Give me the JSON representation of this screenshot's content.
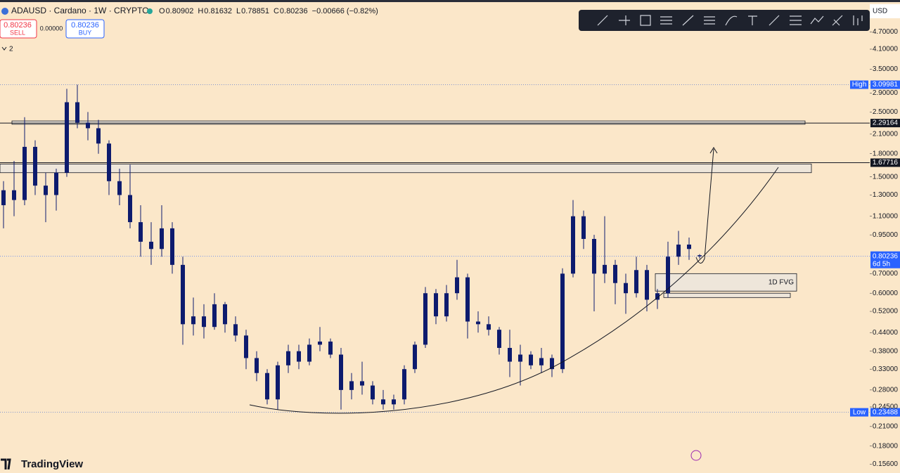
{
  "header": {
    "symbol": "ADAUSD · Cardano · 1W · CRYPTO",
    "ohlc_labels": [
      "O",
      "H",
      "L",
      "C"
    ],
    "change": "−0.00666 (−0.82%)",
    "sell_price": "0.80236",
    "sell": "SELL",
    "spread": "0.00000",
    "buy_price": "0.80236",
    "buy": "BUY",
    "indicators": "2",
    "currency": "USD"
  },
  "brand": "TradingView",
  "chart_data": {
    "type": "candlestick",
    "log_scale": true,
    "ylim": [
      0.1497,
      6.04
    ],
    "up_color": "#0d1b6e",
    "down_color": "#0d1b6e",
    "yticks": [
      {
        "value": 4.7,
        "label": "4.70000"
      },
      {
        "value": 4.1,
        "label": "4.10000"
      },
      {
        "value": 3.5,
        "label": "3.50000"
      },
      {
        "value": 2.9,
        "label": "2.90000"
      },
      {
        "value": 2.5,
        "label": "2.50000"
      },
      {
        "value": 2.1,
        "label": "2.10000"
      },
      {
        "value": 1.8,
        "label": "1.80000"
      },
      {
        "value": 1.5,
        "label": "1.50000"
      },
      {
        "value": 1.3,
        "label": "1.30000"
      },
      {
        "value": 1.1,
        "label": "1.10000"
      },
      {
        "value": 0.95,
        "label": "0.95000"
      },
      {
        "value": 0.7,
        "label": "0.70000"
      },
      {
        "value": 0.6,
        "label": "0.60000"
      },
      {
        "value": 0.52,
        "label": "0.52000"
      },
      {
        "value": 0.44,
        "label": "0.44000"
      },
      {
        "value": 0.38,
        "label": "0.38000"
      },
      {
        "value": 0.33,
        "label": "0.33000"
      },
      {
        "value": 0.28,
        "label": "0.28000"
      },
      {
        "value": 0.245,
        "label": "0.24500"
      },
      {
        "value": 0.21,
        "label": "0.21000"
      },
      {
        "value": 0.18,
        "label": "0.18000"
      },
      {
        "value": 0.156,
        "label": "0.15600"
      }
    ],
    "candles": [
      [
        1.2,
        1.45,
        1.0,
        1.35
      ],
      [
        1.35,
        1.7,
        1.1,
        1.25
      ],
      [
        1.25,
        2.4,
        1.2,
        1.9
      ],
      [
        1.9,
        2.0,
        1.3,
        1.4
      ],
      [
        1.4,
        1.55,
        1.05,
        1.3
      ],
      [
        1.3,
        1.6,
        1.15,
        1.55
      ],
      [
        1.55,
        3.0,
        1.5,
        2.7
      ],
      [
        2.7,
        3.1,
        2.2,
        2.3
      ],
      [
        2.3,
        2.5,
        2.0,
        2.2
      ],
      [
        2.2,
        2.35,
        1.8,
        1.95
      ],
      [
        1.95,
        2.0,
        1.3,
        1.45
      ],
      [
        1.45,
        1.6,
        1.2,
        1.3
      ],
      [
        1.3,
        1.65,
        1.0,
        1.05
      ],
      [
        1.05,
        1.2,
        0.8,
        0.9
      ],
      [
        0.9,
        1.05,
        0.75,
        0.85
      ],
      [
        0.85,
        1.2,
        0.8,
        1.0
      ],
      [
        1.0,
        1.05,
        0.7,
        0.75
      ],
      [
        0.75,
        0.8,
        0.4,
        0.47
      ],
      [
        0.47,
        0.58,
        0.43,
        0.5
      ],
      [
        0.5,
        0.55,
        0.42,
        0.46
      ],
      [
        0.46,
        0.6,
        0.45,
        0.55
      ],
      [
        0.55,
        0.56,
        0.44,
        0.47
      ],
      [
        0.47,
        0.5,
        0.41,
        0.43
      ],
      [
        0.43,
        0.45,
        0.33,
        0.36
      ],
      [
        0.36,
        0.38,
        0.3,
        0.32
      ],
      [
        0.32,
        0.33,
        0.25,
        0.26
      ],
      [
        0.26,
        0.35,
        0.24,
        0.34
      ],
      [
        0.34,
        0.4,
        0.32,
        0.38
      ],
      [
        0.38,
        0.4,
        0.33,
        0.35
      ],
      [
        0.35,
        0.42,
        0.34,
        0.4
      ],
      [
        0.4,
        0.46,
        0.38,
        0.41
      ],
      [
        0.41,
        0.42,
        0.36,
        0.37
      ],
      [
        0.37,
        0.39,
        0.24,
        0.28
      ],
      [
        0.28,
        0.32,
        0.26,
        0.3
      ],
      [
        0.3,
        0.35,
        0.27,
        0.29
      ],
      [
        0.29,
        0.3,
        0.25,
        0.26
      ],
      [
        0.26,
        0.28,
        0.24,
        0.25
      ],
      [
        0.25,
        0.27,
        0.24,
        0.26
      ],
      [
        0.26,
        0.34,
        0.25,
        0.33
      ],
      [
        0.33,
        0.41,
        0.32,
        0.4
      ],
      [
        0.4,
        0.63,
        0.39,
        0.6
      ],
      [
        0.6,
        0.62,
        0.47,
        0.5
      ],
      [
        0.5,
        0.64,
        0.48,
        0.6
      ],
      [
        0.6,
        0.78,
        0.57,
        0.68
      ],
      [
        0.68,
        0.7,
        0.42,
        0.48
      ],
      [
        0.48,
        0.52,
        0.44,
        0.47
      ],
      [
        0.47,
        0.5,
        0.43,
        0.45
      ],
      [
        0.45,
        0.46,
        0.37,
        0.39
      ],
      [
        0.39,
        0.45,
        0.31,
        0.35
      ],
      [
        0.35,
        0.4,
        0.29,
        0.37
      ],
      [
        0.37,
        0.38,
        0.33,
        0.34
      ],
      [
        0.34,
        0.39,
        0.32,
        0.36
      ],
      [
        0.36,
        0.37,
        0.31,
        0.33
      ],
      [
        0.33,
        0.73,
        0.32,
        0.7
      ],
      [
        0.7,
        1.25,
        0.68,
        1.1
      ],
      [
        1.1,
        1.15,
        0.85,
        0.92
      ],
      [
        0.92,
        0.95,
        0.52,
        0.7
      ],
      [
        0.7,
        1.1,
        0.65,
        0.75
      ],
      [
        0.75,
        0.78,
        0.55,
        0.65
      ],
      [
        0.65,
        0.7,
        0.51,
        0.6
      ],
      [
        0.6,
        0.8,
        0.58,
        0.72
      ],
      [
        0.72,
        0.75,
        0.52,
        0.57
      ],
      [
        0.57,
        0.62,
        0.53,
        0.6
      ],
      [
        0.6,
        0.9,
        0.58,
        0.8
      ],
      [
        0.8,
        0.98,
        0.75,
        0.88
      ],
      [
        0.88,
        0.93,
        0.78,
        0.85
      ],
      [
        0.80902,
        0.81632,
        0.78851,
        0.80236
      ]
    ],
    "levels": [
      {
        "label": "High",
        "value": 3.09981,
        "style": "dotted"
      },
      {
        "value": 2.29164,
        "style": "solid"
      },
      {
        "value": 1.67716,
        "style": "solid"
      },
      {
        "label": "Low",
        "value": 0.23488,
        "style": "dotted"
      }
    ],
    "current_time": "6d 5h",
    "zones": [
      {
        "top": 2.33,
        "bottom": 2.27
      },
      {
        "top": 1.66,
        "bottom": 1.55
      },
      {
        "top": 0.7,
        "bottom": 0.61,
        "label": "1D FVG"
      },
      {
        "top": 0.6,
        "bottom": 0.58
      }
    ]
  }
}
